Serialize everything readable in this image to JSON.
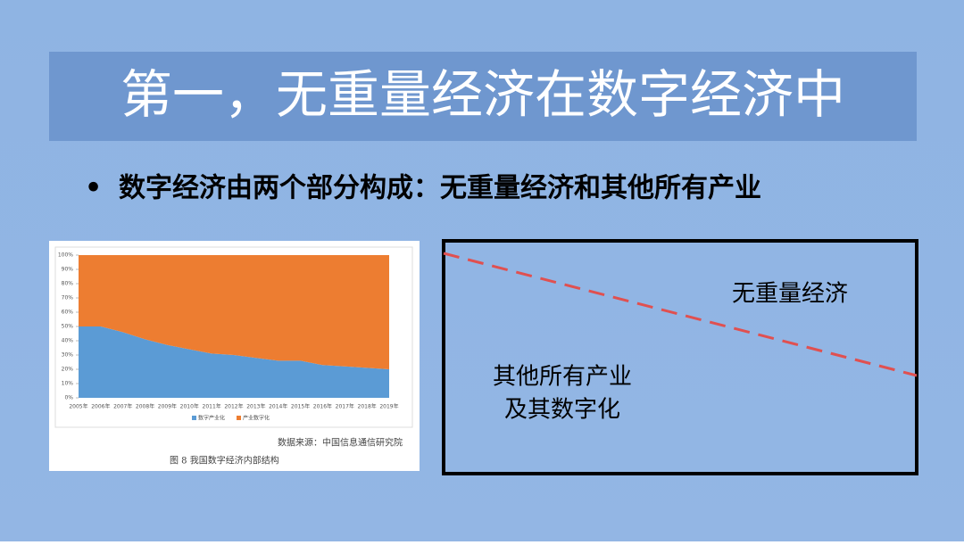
{
  "header": {
    "title": "第一，无重量经济在数字经济中"
  },
  "bullet": "数字经济由两个部分构成：无重量经济和其他所有产业",
  "figure": {
    "source": "数据来源：中国信息通信研究院",
    "caption": "图 8  我国数字经济内部结构",
    "chart_data": {
      "type": "area",
      "stacked": true,
      "categories": [
        "2005年",
        "2006年",
        "2007年",
        "2008年",
        "2009年",
        "2010年",
        "2011年",
        "2012年",
        "2013年",
        "2014年",
        "2015年",
        "2016年",
        "2017年",
        "2018年",
        "2019年"
      ],
      "series": [
        {
          "name": "数字产业化",
          "color": "#5b9bd5",
          "values": [
            50,
            50,
            46,
            41,
            37,
            34,
            31,
            30,
            28,
            26,
            26,
            23,
            22,
            21,
            20
          ]
        },
        {
          "name": "产业数字化",
          "color": "#ed7d31",
          "values": [
            50,
            50,
            54,
            59,
            63,
            66,
            69,
            70,
            72,
            74,
            74,
            77,
            78,
            79,
            80
          ]
        }
      ],
      "ylim": [
        0,
        100
      ],
      "yticks": [
        {
          "value": 0,
          "label": "0%"
        },
        {
          "value": 10,
          "label": "10%"
        },
        {
          "value": 20,
          "label": "20%"
        },
        {
          "value": 30,
          "label": "30%"
        },
        {
          "value": 40,
          "label": "40%"
        },
        {
          "value": 50,
          "label": "50%"
        },
        {
          "value": 60,
          "label": "60%"
        },
        {
          "value": 70,
          "label": "70%"
        },
        {
          "value": 80,
          "label": "80%"
        },
        {
          "value": 90,
          "label": "90%"
        },
        {
          "value": 100,
          "label": "100%"
        }
      ],
      "legend": "bottom"
    }
  },
  "diagram": {
    "upper_label": "无重量经济",
    "lower_label": [
      "其他所有产业",
      "及其数字化"
    ]
  }
}
